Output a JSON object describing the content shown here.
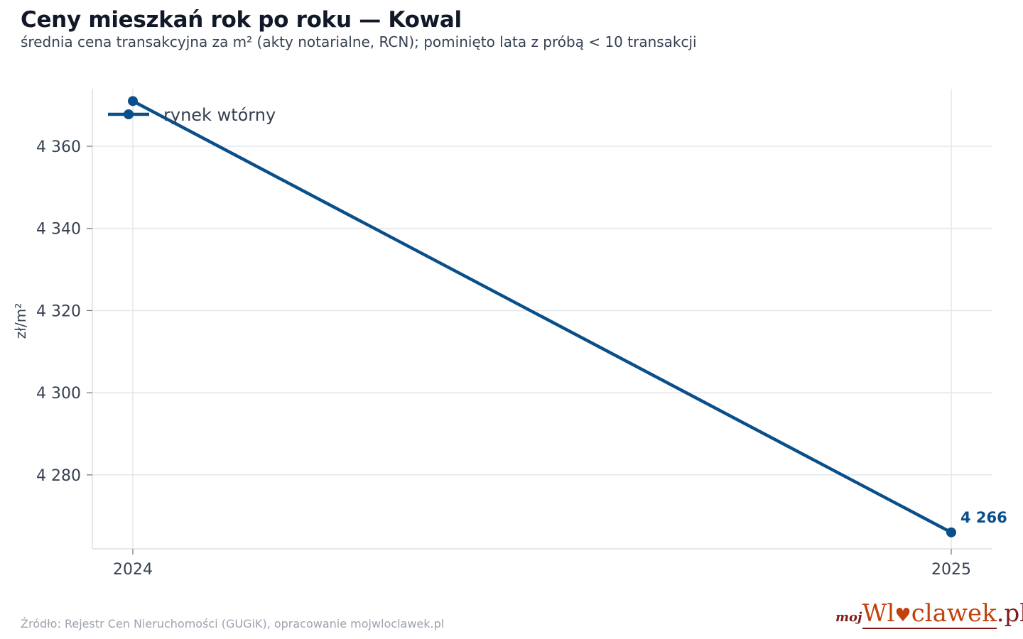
{
  "title": "Ceny mieszkań rok po roku — Kowal",
  "subtitle": "średnia cena transakcyjna za m² (akty notarialne, RCN); pominięto lata z próbą < 10 transakcji",
  "source": "Źródło: Rejestr Cen Nieruchomości (GUGiK), opracowanie mojwloclawek.pl",
  "logo": {
    "prefix": "moj",
    "brand_a": "Wl",
    "brand_b": "clawek",
    "tld": ".pl"
  },
  "colors": {
    "series": "#0b4f8a",
    "grid": "#e5e7eb"
  },
  "chart_data": {
    "type": "line",
    "title": "Ceny mieszkań rok po roku — Kowal",
    "subtitle": "średnia cena transakcyjna za m² (akty notarialne, RCN); pominięto lata z próbą < 10 transakcji",
    "xlabel": "",
    "ylabel": "zł/m²",
    "x": [
      2024,
      2025
    ],
    "x_tick_labels": [
      "2024",
      "2025"
    ],
    "ylim": [
      4262,
      4374
    ],
    "y_ticks": [
      4280,
      4300,
      4320,
      4340,
      4360
    ],
    "y_tick_labels": [
      "4 280",
      "4 300",
      "4 320",
      "4 340",
      "4 360"
    ],
    "grid": true,
    "legend_position": "top-left",
    "series": [
      {
        "name": "rynek wtórny",
        "values": [
          4371,
          4266
        ],
        "color": "#0b4f8a"
      }
    ],
    "annotations": [
      {
        "series": 0,
        "point_index": 1,
        "text": "4 266"
      }
    ]
  }
}
